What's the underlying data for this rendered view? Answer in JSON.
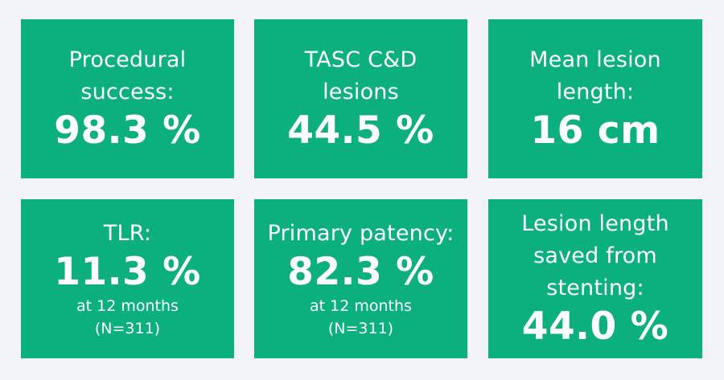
{
  "colors": {
    "background": "#f2f3f8",
    "card": "#0cb07e",
    "text": "#ffffff"
  },
  "cards": [
    {
      "label_lines": [
        "Procedural",
        "success:"
      ],
      "value": "98.3 %"
    },
    {
      "label_lines": [
        "TASC C&D",
        "lesions"
      ],
      "value": "44.5 %"
    },
    {
      "label_lines": [
        "Mean lesion",
        "length:"
      ],
      "value": "16 cm"
    },
    {
      "label_lines": [
        "TLR:"
      ],
      "value": "11.3 %",
      "note_lines": [
        "at 12 months",
        "(N=311)"
      ]
    },
    {
      "label_lines": [
        "Primary patency:"
      ],
      "value": "82.3 %",
      "note_lines": [
        "at 12 months",
        "(N=311)"
      ]
    },
    {
      "label_lines": [
        "Lesion length",
        "saved from",
        "stenting:"
      ],
      "value": "44.0 %"
    }
  ]
}
